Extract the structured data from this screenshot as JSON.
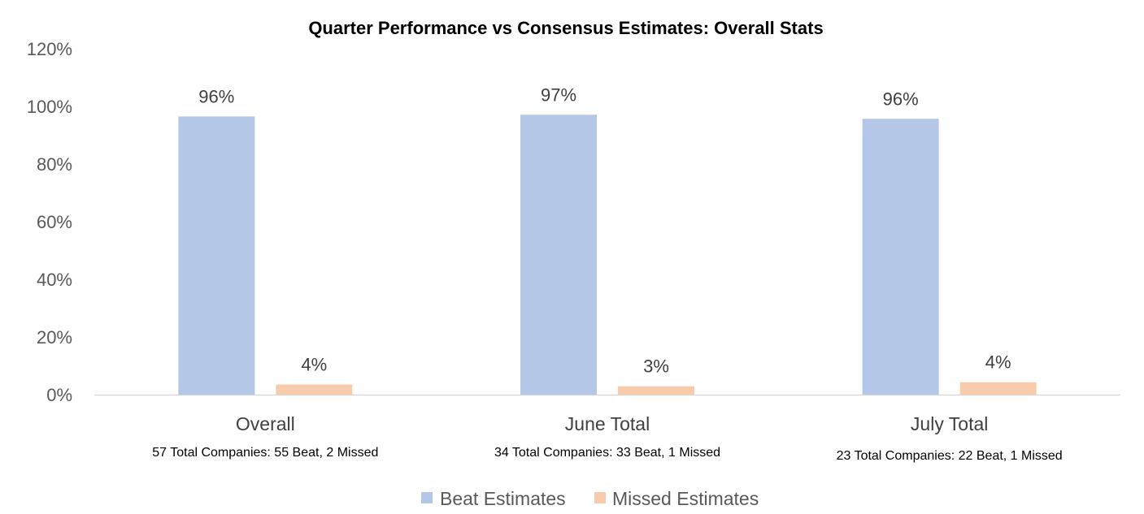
{
  "chart_data": {
    "type": "bar",
    "title": "Quarter Performance vs Consensus Estimates: Overall Stats",
    "categories": [
      "Overall",
      "June Total",
      "July Total"
    ],
    "category_notes": [
      "57 Total Companies: 55 Beat, 2 Missed",
      "34 Total Companies: 33 Beat, 1 Missed",
      "23 Total Companies: 22 Beat, 1 Missed"
    ],
    "series": [
      {
        "name": "Beat Estimates",
        "color": "#b4c7e7",
        "values": [
          96.5,
          97.1,
          95.7
        ],
        "labels": [
          "96%",
          "97%",
          "96%"
        ]
      },
      {
        "name": "Missed Estimates",
        "color": "#f8cbad",
        "values": [
          3.5,
          2.9,
          4.3
        ],
        "labels": [
          "4%",
          "3%",
          "4%"
        ]
      }
    ],
    "yticks": [
      "0%",
      "20%",
      "40%",
      "60%",
      "80%",
      "100%",
      "120%"
    ],
    "ylim": [
      0,
      120
    ],
    "grid": false,
    "legend_position": "bottom",
    "axis_color": "#d9d9d9"
  }
}
